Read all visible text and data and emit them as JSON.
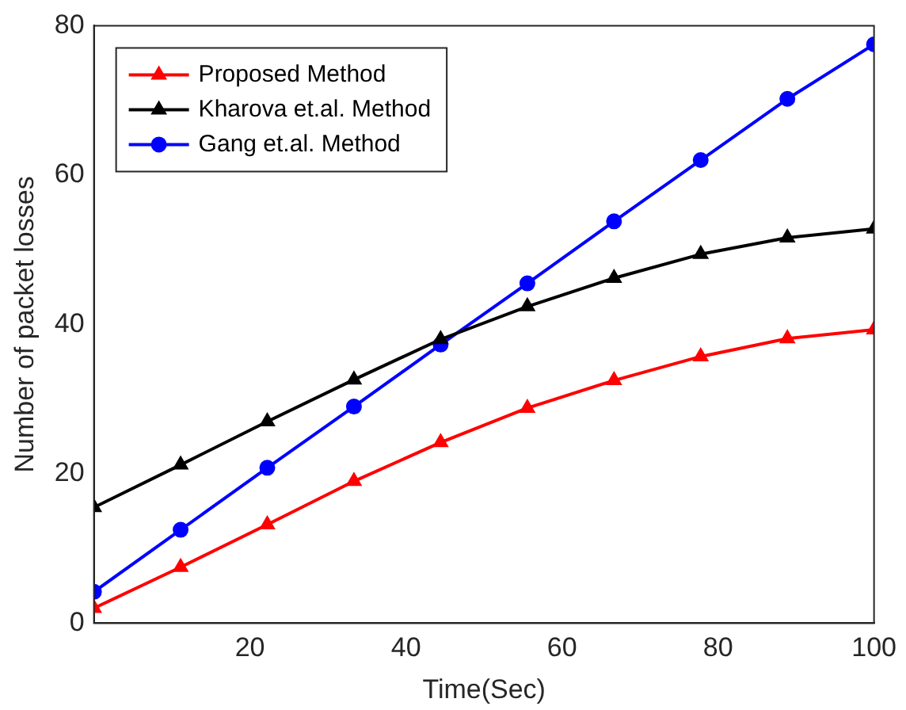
{
  "chart_data": {
    "type": "line",
    "xlabel": "Time(Sec)",
    "ylabel": "Number of packet losses",
    "x": [
      0,
      11.11,
      22.22,
      33.33,
      44.44,
      55.56,
      66.67,
      77.78,
      88.89,
      100
    ],
    "series": [
      {
        "name": "Proposed Method",
        "color": "#ff0000",
        "marker": "triangle",
        "values": [
          2,
          7.5,
          13.2,
          19,
          24.2,
          28.8,
          32.5,
          35.7,
          38.1,
          39.3
        ]
      },
      {
        "name": "Kharova et.al. Method",
        "color": "#000000",
        "marker": "triangle",
        "values": [
          15.5,
          21.2,
          27,
          32.6,
          38,
          42.4,
          46.2,
          49.4,
          51.6,
          52.8
        ]
      },
      {
        "name": "Gang et.al. Method",
        "color": "#0000ff",
        "marker": "circle",
        "values": [
          4.2,
          12.5,
          20.8,
          29,
          37.3,
          45.5,
          53.8,
          62,
          70.2,
          77.5
        ]
      }
    ],
    "xlim": [
      0,
      100
    ],
    "xticks": [
      20,
      40,
      60,
      80,
      100
    ],
    "ylim": [
      0,
      80
    ],
    "yticks": [
      0,
      20,
      40,
      60,
      80
    ],
    "grid": false,
    "legend": "top left",
    "line_style": "solid"
  }
}
